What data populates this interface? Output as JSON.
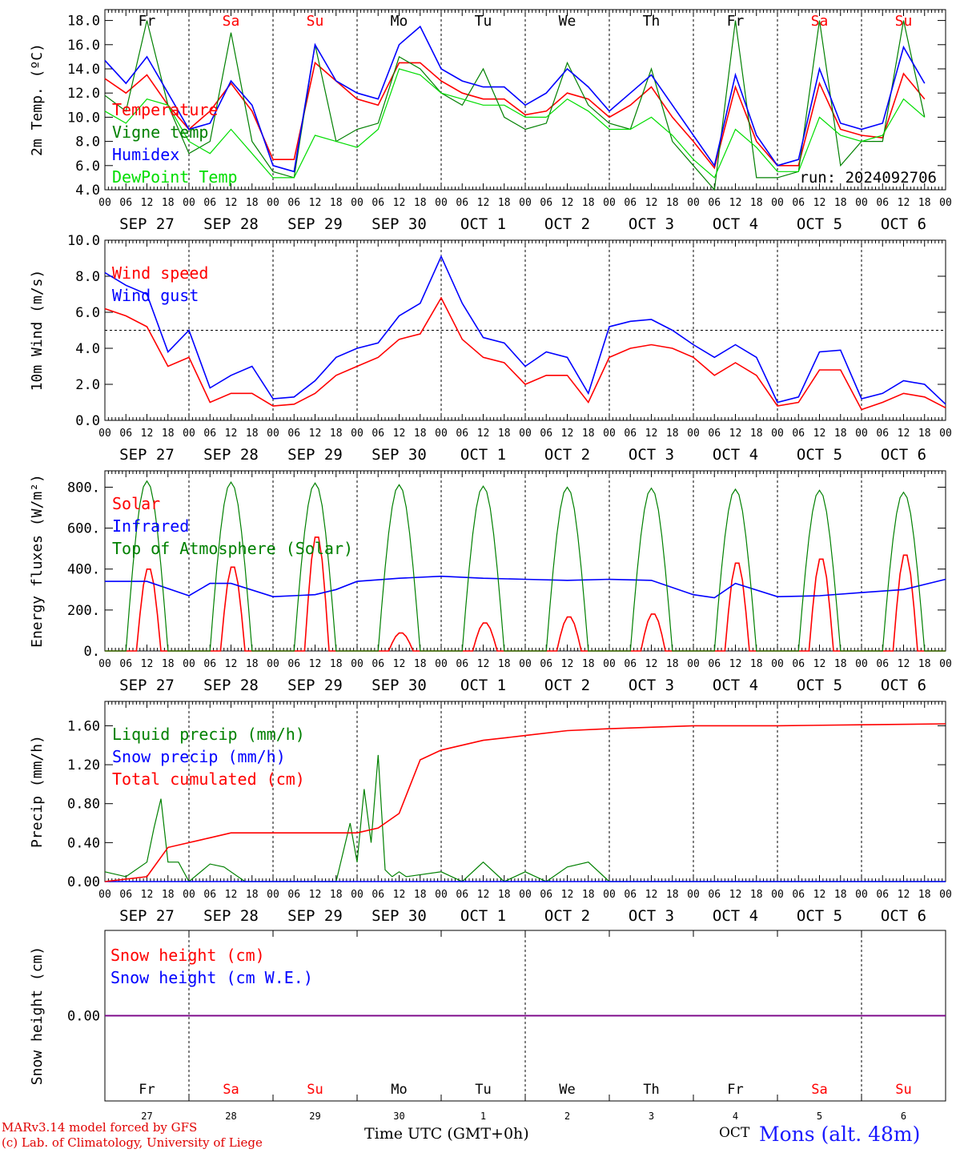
{
  "meta": {
    "run_label": "run: 2024092706"
  },
  "footer": {
    "credit_line1": "MARv3.14 model forced by GFS",
    "credit_line2": "(c) Lab. of Climatology, University of Liege",
    "xaxis_label": "Time UTC (GMT+0h)",
    "month_label": "OCT",
    "station": "Mons (alt. 48m)"
  },
  "axis": {
    "hour_ticks": [
      "00",
      "06",
      "12",
      "18"
    ],
    "dates": [
      "SEP 27",
      "SEP 28",
      "SEP 29",
      "SEP 30",
      "OCT  1",
      "OCT  2",
      "OCT  3",
      "OCT  4",
      "OCT  5",
      "OCT  6"
    ],
    "day_names": [
      "Fr",
      "Sa",
      "Su",
      "Mo",
      "Tu",
      "We",
      "Th",
      "Fr",
      "Sa",
      "Su"
    ],
    "weekend_flags": [
      false,
      true,
      true,
      false,
      false,
      false,
      false,
      false,
      true,
      true
    ],
    "day_numbers": [
      "27",
      "28",
      "29",
      "30",
      "1",
      "2",
      "3",
      "4",
      "5",
      "6"
    ]
  },
  "colors": {
    "red": "#ff0000",
    "green": "#008000",
    "blue": "#0000ff",
    "lightgreen": "#00dd00",
    "purple": "#800080"
  },
  "chart_data": [
    {
      "type": "line",
      "ylabel": "2m Temp. (ºC)",
      "ylim": [
        4,
        18.9
      ],
      "yticks": [
        "4.0",
        "6.0",
        "8.0",
        "10.0",
        "12.0",
        "14.0",
        "16.0",
        "18.0"
      ],
      "ytick_values": [
        4,
        6,
        8,
        10,
        12,
        14,
        16,
        18
      ],
      "x_unit": "hours since SEP 27 00 UTC",
      "series": [
        {
          "name": "Temperature",
          "color": "red",
          "x": [
            0,
            6,
            12,
            18,
            24,
            30,
            36,
            42,
            48,
            54,
            60,
            66,
            72,
            78,
            84,
            90,
            96,
            102,
            108,
            114,
            120,
            126,
            132,
            138,
            144,
            150,
            156,
            162,
            168,
            174,
            180,
            186,
            192,
            198,
            204,
            210,
            216,
            222,
            228,
            234
          ],
          "y": [
            13.2,
            12.0,
            13.5,
            11.0,
            9.0,
            10.5,
            12.8,
            10.5,
            6.5,
            6.5,
            14.5,
            13.0,
            11.5,
            11.0,
            14.5,
            14.5,
            13.0,
            12.0,
            11.5,
            11.5,
            10.2,
            10.5,
            12.0,
            11.5,
            10.0,
            11.0,
            12.5,
            10.0,
            8.0,
            5.8,
            12.5,
            8.0,
            6.0,
            6.0,
            12.8,
            9.0,
            8.5,
            8.3,
            13.6,
            11.5
          ]
        },
        {
          "name": "Vigne temp",
          "color": "green",
          "x": [
            0,
            6,
            12,
            18,
            24,
            30,
            36,
            42,
            48,
            54,
            60,
            66,
            72,
            78,
            84,
            90,
            96,
            102,
            108,
            114,
            120,
            126,
            132,
            138,
            144,
            150,
            156,
            162,
            168,
            174,
            180,
            186,
            192,
            198,
            204,
            210,
            216,
            222,
            228,
            234
          ],
          "y": [
            11.8,
            10.5,
            18.0,
            11.0,
            7.0,
            8.0,
            17.0,
            8.0,
            5.5,
            5.0,
            16.0,
            8.0,
            9.0,
            9.5,
            15.0,
            14.0,
            12.0,
            11.0,
            14.0,
            10.0,
            9.0,
            9.5,
            14.5,
            11.0,
            9.5,
            9.0,
            14.0,
            8.0,
            6.0,
            4.0,
            18.0,
            5.0,
            5.0,
            5.5,
            18.0,
            6.0,
            8.0,
            8.0,
            18.0,
            10.0
          ]
        },
        {
          "name": "Humidex",
          "color": "blue",
          "x": [
            0,
            6,
            12,
            18,
            24,
            30,
            36,
            42,
            48,
            54,
            60,
            66,
            72,
            78,
            84,
            90,
            96,
            102,
            108,
            114,
            120,
            126,
            132,
            138,
            144,
            150,
            156,
            162,
            168,
            174,
            180,
            186,
            192,
            198,
            204,
            210,
            216,
            222,
            228,
            234
          ],
          "y": [
            14.7,
            12.8,
            15.0,
            12.0,
            9.0,
            9.5,
            13.0,
            11.0,
            6.0,
            5.5,
            16.0,
            13.0,
            12.0,
            11.5,
            16.0,
            17.5,
            14.0,
            13.0,
            12.5,
            12.5,
            11.0,
            12.0,
            14.0,
            12.5,
            10.5,
            12.0,
            13.5,
            11.0,
            8.5,
            6.0,
            13.5,
            8.5,
            6.0,
            6.5,
            14.0,
            9.5,
            9.0,
            9.5,
            15.8,
            12.8
          ]
        },
        {
          "name": "DewPoint Temp",
          "color": "lightgreen",
          "x": [
            0,
            6,
            12,
            18,
            24,
            30,
            36,
            42,
            48,
            54,
            60,
            66,
            72,
            78,
            84,
            90,
            96,
            102,
            108,
            114,
            120,
            126,
            132,
            138,
            144,
            150,
            156,
            162,
            168,
            174,
            180,
            186,
            192,
            198,
            204,
            210,
            216,
            222,
            228,
            234
          ],
          "y": [
            10.5,
            9.5,
            11.5,
            11.0,
            8.0,
            7.0,
            9.0,
            7.0,
            5.0,
            5.0,
            8.5,
            8.0,
            7.5,
            9.0,
            14.0,
            13.5,
            12.0,
            11.5,
            11.0,
            11.0,
            10.0,
            10.0,
            11.5,
            10.5,
            9.0,
            9.0,
            10.0,
            8.5,
            6.5,
            5.0,
            9.0,
            7.5,
            5.5,
            5.5,
            10.0,
            8.5,
            8.0,
            8.5,
            11.5,
            10.0
          ]
        }
      ]
    },
    {
      "type": "line",
      "ylabel": "10m Wind (m/s)",
      "ylim": [
        0,
        10
      ],
      "yticks": [
        "0.0",
        "2.0",
        "4.0",
        "6.0",
        "8.0",
        "10.0"
      ],
      "ytick_values": [
        0,
        2,
        4,
        6,
        8,
        10
      ],
      "reference_line": 5.0,
      "x_unit": "hours since SEP 27 00 UTC",
      "series": [
        {
          "name": "Wind speed",
          "color": "red",
          "x": [
            0,
            6,
            12,
            18,
            24,
            30,
            36,
            42,
            48,
            54,
            60,
            66,
            72,
            78,
            84,
            90,
            96,
            102,
            108,
            114,
            120,
            126,
            132,
            138,
            144,
            150,
            156,
            162,
            168,
            174,
            180,
            186,
            192,
            198,
            204,
            210,
            216,
            222,
            228,
            234,
            240
          ],
          "y": [
            6.2,
            5.8,
            5.2,
            3.0,
            3.5,
            1.0,
            1.5,
            1.5,
            0.8,
            0.9,
            1.5,
            2.5,
            3.0,
            3.5,
            4.5,
            4.8,
            6.8,
            4.5,
            3.5,
            3.2,
            2.0,
            2.5,
            2.5,
            1.0,
            3.5,
            4.0,
            4.2,
            4.0,
            3.5,
            2.5,
            3.2,
            2.5,
            0.8,
            1.0,
            2.8,
            2.8,
            0.6,
            1.0,
            1.5,
            1.3,
            0.7
          ]
        },
        {
          "name": "Wind gust",
          "color": "blue",
          "x": [
            0,
            6,
            12,
            18,
            24,
            30,
            36,
            42,
            48,
            54,
            60,
            66,
            72,
            78,
            84,
            90,
            96,
            102,
            108,
            114,
            120,
            126,
            132,
            138,
            144,
            150,
            156,
            162,
            168,
            174,
            180,
            186,
            192,
            198,
            204,
            210,
            216,
            222,
            228,
            234,
            240
          ],
          "y": [
            8.2,
            7.5,
            7.0,
            3.8,
            5.0,
            1.8,
            2.5,
            3.0,
            1.2,
            1.3,
            2.2,
            3.5,
            4.0,
            4.3,
            5.8,
            6.5,
            9.1,
            6.5,
            4.6,
            4.3,
            3.0,
            3.8,
            3.5,
            1.5,
            5.2,
            5.5,
            5.6,
            5.0,
            4.2,
            3.5,
            4.2,
            3.5,
            1.0,
            1.3,
            3.8,
            3.9,
            1.2,
            1.5,
            2.2,
            2.0,
            0.9
          ]
        }
      ]
    },
    {
      "type": "line",
      "ylabel": "Energy fluxes (W/m²)",
      "ylim": [
        0,
        880
      ],
      "yticks": [
        "0.",
        "200.",
        "400.",
        "600.",
        "800."
      ],
      "ytick_values": [
        0,
        200,
        400,
        600,
        800
      ],
      "x_unit": "hours since SEP 27 00 UTC",
      "series": [
        {
          "name": "Solar",
          "color": "red",
          "peaks": [
            410,
            420,
            570,
            90,
            140,
            170,
            185,
            440,
            460,
            480
          ]
        },
        {
          "name": "Infrared",
          "color": "blue",
          "x": [
            0,
            12,
            24,
            30,
            36,
            48,
            60,
            66,
            72,
            84,
            96,
            108,
            120,
            132,
            144,
            156,
            168,
            174,
            180,
            192,
            204,
            216,
            228,
            240
          ],
          "y": [
            340,
            340,
            270,
            330,
            330,
            265,
            275,
            300,
            340,
            355,
            365,
            355,
            350,
            345,
            350,
            345,
            275,
            260,
            330,
            265,
            270,
            285,
            300,
            350
          ]
        },
        {
          "name": "Top of Atmosphere (Solar)",
          "color": "green",
          "peaks": [
            830,
            825,
            820,
            812,
            805,
            800,
            795,
            790,
            785,
            775
          ]
        }
      ]
    },
    {
      "type": "line",
      "ylabel": "Precip (mm/h)",
      "ylim": [
        0,
        1.85
      ],
      "yticks": [
        "0.00",
        "0.40",
        "0.80",
        "1.20",
        "1.60"
      ],
      "ytick_values": [
        0,
        0.4,
        0.8,
        1.2,
        1.6
      ],
      "x_unit": "hours since SEP 27 00 UTC",
      "series": [
        {
          "name": "Liquid precip (mm/h)",
          "color": "green",
          "x": [
            0,
            6,
            12,
            14,
            16,
            18,
            21,
            24,
            30,
            34,
            40,
            48,
            60,
            66,
            70,
            72,
            74,
            76,
            78,
            80,
            82,
            84,
            86,
            96,
            102,
            108,
            114,
            120,
            126,
            132,
            138,
            144,
            240
          ],
          "y": [
            0.1,
            0.05,
            0.2,
            0.55,
            0.85,
            0.2,
            0.2,
            0.0,
            0.18,
            0.15,
            0.0,
            0.0,
            0.0,
            0.0,
            0.6,
            0.2,
            0.95,
            0.4,
            1.3,
            0.12,
            0.05,
            0.1,
            0.05,
            0.1,
            0.0,
            0.2,
            0.0,
            0.1,
            0.0,
            0.15,
            0.2,
            0.0,
            0.0
          ]
        },
        {
          "name": "Snow precip (mm/h)",
          "color": "blue",
          "x": [
            0,
            240
          ],
          "y": [
            0.0,
            0.0
          ]
        },
        {
          "name": "Total cumulated (cm)",
          "color": "red",
          "x": [
            0,
            12,
            18,
            24,
            30,
            36,
            48,
            60,
            72,
            78,
            84,
            90,
            96,
            108,
            120,
            132,
            144,
            168,
            192,
            216,
            240
          ],
          "y": [
            0.0,
            0.05,
            0.35,
            0.4,
            0.45,
            0.5,
            0.5,
            0.5,
            0.5,
            0.55,
            0.7,
            1.25,
            1.35,
            1.45,
            1.5,
            1.55,
            1.57,
            1.6,
            1.6,
            1.61,
            1.62
          ]
        }
      ]
    },
    {
      "type": "line",
      "ylabel": "Snow height (cm)",
      "ylim": [
        -1,
        1
      ],
      "yticks": [
        "0.00"
      ],
      "ytick_values": [
        0
      ],
      "x_unit": "hours since SEP 27 00 UTC",
      "series": [
        {
          "name": "Snow height (cm)",
          "color": "red",
          "x": [
            0,
            240
          ],
          "y": [
            0,
            0
          ]
        },
        {
          "name": "Snow height (cm W.E.)",
          "color": "blue",
          "x": [
            0,
            240
          ],
          "y": [
            0,
            0
          ]
        }
      ]
    }
  ]
}
